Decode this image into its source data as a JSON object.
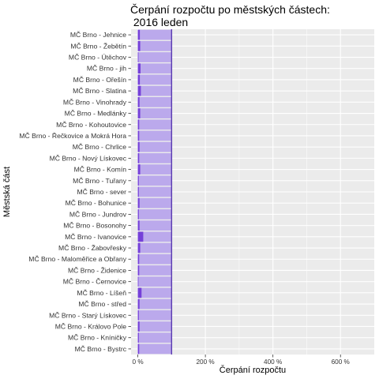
{
  "chart_data": {
    "type": "bar",
    "orientation": "horizontal",
    "title": [
      "Čerpání rozpočtu po městských částech:",
      " 2016 leden"
    ],
    "xlabel": "Čerpání rozpočtu",
    "ylabel": "Městská část",
    "xlim": [
      -0.2,
      7.0
    ],
    "x_ticks": [
      0,
      2,
      4,
      6
    ],
    "x_tick_labels": [
      "0 %",
      "200 %",
      "400 %",
      "600 %"
    ],
    "reference_line": 1.0,
    "grid": true,
    "colors": {
      "panel": "#ebebeb",
      "grid": "#ffffff",
      "reference_fill": "#bba9ec",
      "bar": "#7540d8",
      "reference_line": "#5a3bb0"
    },
    "categories": [
      "MČ Brno - Jehnice",
      "MČ Brno - Žebětín",
      "MČ Brno - Útěchov",
      "MČ Brno - jih",
      "MČ Brno - Ořešín",
      "MČ Brno - Slatina",
      "MČ Brno - Vinohrady",
      "MČ Brno - Medlánky",
      "MČ Brno - Kohoutovice",
      "MČ Brno - Řečkovice a Mokrá Hora",
      "MČ Brno - Chrlice",
      "MČ Brno - Nový Lískovec",
      "MČ Brno - Komín",
      "MČ Brno - Tuřany",
      "MČ Brno - sever",
      "MČ Brno - Bohunice",
      "MČ Brno - Jundrov",
      "MČ Brno - Bosonohy",
      "MČ Brno - Ivanovice",
      "MČ Brno - Žabovřesky",
      "MČ Brno - Maloměřice a Obřany",
      "MČ Brno - Židenice",
      "MČ Brno - Černovice",
      "MČ Brno - Líšeň",
      "MČ Brno - střed",
      "MČ Brno - Starý Lískovec",
      "MČ Brno - Královo Pole",
      "MČ Brno - Kníničky",
      "MČ Brno - Bystrc"
    ],
    "values": [
      0.06,
      0.07,
      0.02,
      0.08,
      0.06,
      0.09,
      0.05,
      0.07,
      0.04,
      0.04,
      0.05,
      0.04,
      0.07,
      0.03,
      0.03,
      0.05,
      0.03,
      0.05,
      0.16,
      0.07,
      0.04,
      0.04,
      0.02,
      0.11,
      0.05,
      0.03,
      0.05,
      0.03,
      0.04
    ],
    "reference_values": [
      1,
      1,
      1,
      1,
      1,
      1,
      1,
      1,
      1,
      1,
      1,
      1,
      1,
      1,
      1,
      1,
      1,
      1,
      1,
      1,
      1,
      1,
      1,
      1,
      1,
      1,
      1,
      1,
      1
    ]
  }
}
